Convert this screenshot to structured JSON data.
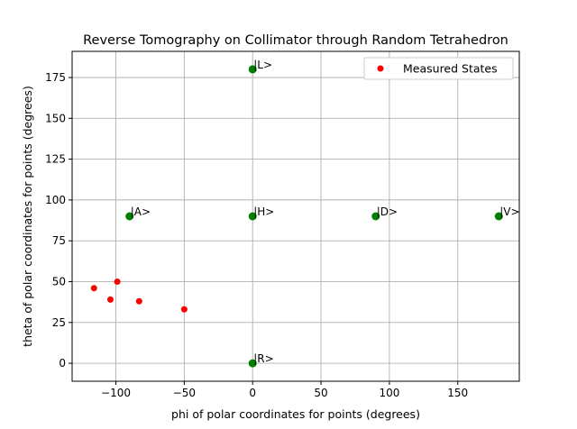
{
  "chart_data": {
    "type": "scatter",
    "title": "Reverse Tomography on Collimator through Random Tetrahedron",
    "xlabel": "phi of polar coordinates for points (degrees)",
    "ylabel": "theta of polar coordinates for points (degrees)",
    "xlim": [
      -132,
      195
    ],
    "ylim": [
      -11,
      191
    ],
    "xticks": [
      -100,
      -50,
      0,
      50,
      100,
      150
    ],
    "yticks": [
      0,
      25,
      50,
      75,
      100,
      125,
      150,
      175
    ],
    "grid": true,
    "legend_position": "top-right",
    "series": [
      {
        "name": "Measured States",
        "color": "#ff0000",
        "in_legend": true,
        "points": [
          {
            "x": -116,
            "y": 46
          },
          {
            "x": -104,
            "y": 39
          },
          {
            "x": -99,
            "y": 50
          },
          {
            "x": -83,
            "y": 38
          },
          {
            "x": -50,
            "y": 33
          }
        ]
      },
      {
        "color": "#008000",
        "in_legend": false,
        "points": [
          {
            "x": 0,
            "y": 180,
            "label": "|L>"
          },
          {
            "x": -90,
            "y": 90,
            "label": "|A>"
          },
          {
            "x": 0,
            "y": 90,
            "label": "|H>"
          },
          {
            "x": 90,
            "y": 90,
            "label": "|D>"
          },
          {
            "x": 180,
            "y": 90,
            "label": "|V>"
          },
          {
            "x": 0,
            "y": 0,
            "label": "|R>"
          }
        ]
      }
    ]
  }
}
